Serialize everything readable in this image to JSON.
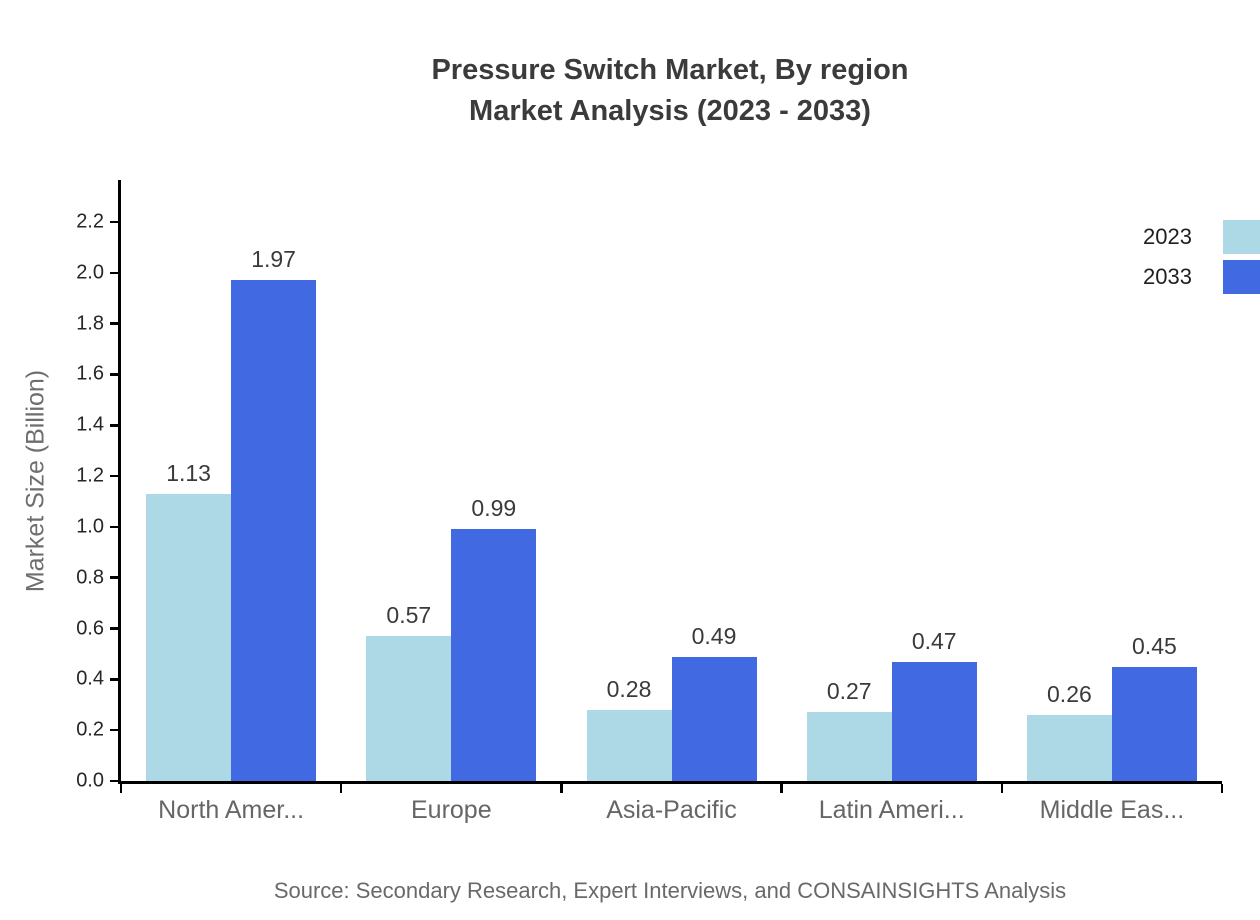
{
  "title": {
    "line1": "Pressure Switch Market, By region",
    "line2": "Market Analysis (2023 - 2033)"
  },
  "source": "Source: Secondary Research, Expert Interviews, and CONSAINSIGHTS Analysis",
  "chart_data": {
    "type": "bar",
    "title": "Pressure Switch Market, By region Market Analysis (2023 - 2033)",
    "categories": [
      "North Amer...",
      "Europe",
      "Asia-Pacific",
      "Latin Ameri...",
      "Middle Eas..."
    ],
    "series": [
      {
        "name": "2023",
        "color": "#ADD8E6",
        "values": [
          1.13,
          0.57,
          0.28,
          0.27,
          0.26
        ]
      },
      {
        "name": "2033",
        "color": "#4169E1",
        "values": [
          1.97,
          0.99,
          0.49,
          0.47,
          0.45
        ]
      }
    ],
    "xlabel": "",
    "ylabel": "Market Size (Billion)",
    "ylim": [
      0,
      2.2
    ],
    "yticks": [
      "0.0",
      "0.2",
      "0.4",
      "0.6",
      "0.8",
      "1.0",
      "1.2",
      "1.4",
      "1.6",
      "1.8",
      "2.0",
      "2.2"
    ],
    "grid": false,
    "legend_position": "top-right",
    "value_labels": true,
    "colors": {
      "axis": "#000000",
      "title_text": "#3b3b3b",
      "tick_text": "#262626",
      "category_text": "#666666",
      "source_text": "#696969"
    }
  }
}
